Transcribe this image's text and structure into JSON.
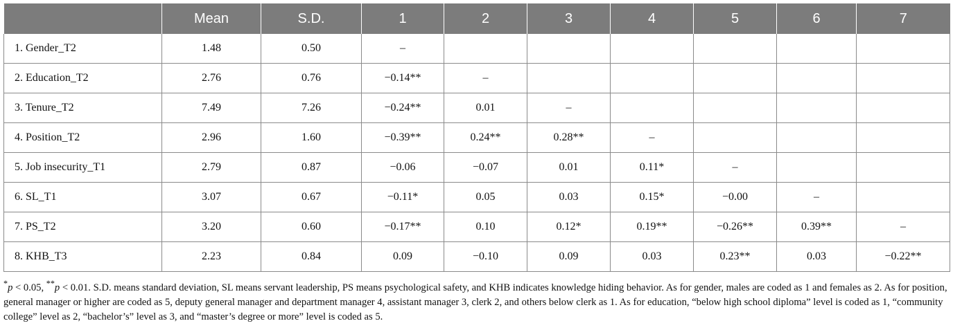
{
  "table": {
    "headers": [
      "",
      "Mean",
      "S.D.",
      "1",
      "2",
      "3",
      "4",
      "5",
      "6",
      "7"
    ],
    "rows": [
      [
        "1. Gender_T2",
        "1.48",
        "0.50",
        "–",
        "",
        "",
        "",
        "",
        "",
        ""
      ],
      [
        "2. Education_T2",
        "2.76",
        "0.76",
        "−0.14**",
        "–",
        "",
        "",
        "",
        "",
        ""
      ],
      [
        "3. Tenure_T2",
        "7.49",
        "7.26",
        "−0.24**",
        "0.01",
        "–",
        "",
        "",
        "",
        ""
      ],
      [
        "4. Position_T2",
        "2.96",
        "1.60",
        "−0.39**",
        "0.24**",
        "0.28**",
        "–",
        "",
        "",
        ""
      ],
      [
        "5. Job insecurity_T1",
        "2.79",
        "0.87",
        "−0.06",
        "−0.07",
        "0.01",
        "0.11*",
        "–",
        "",
        ""
      ],
      [
        "6. SL_T1",
        "3.07",
        "0.67",
        "−0.11*",
        "0.05",
        "0.03",
        "0.15*",
        "−0.00",
        "–",
        ""
      ],
      [
        "7. PS_T2",
        "3.20",
        "0.60",
        "−0.17**",
        "0.10",
        "0.12*",
        "0.19**",
        "−0.26**",
        "0.39**",
        "–"
      ],
      [
        "8. KHB_T3",
        "2.23",
        "0.84",
        "0.09",
        "−0.10",
        "0.09",
        "0.03",
        "0.23**",
        "0.03",
        "−0.22**"
      ]
    ]
  },
  "note": {
    "mark1": "*",
    "p1": "p",
    "thr1": " < 0.05, ",
    "mark2": "**",
    "p2": "p",
    "thr2": " < 0.01.",
    "body": " S.D. means standard deviation, SL means servant leadership, PS means psychological safety, and KHB indicates knowledge hiding behavior. As for gender, males are coded as 1 and females as 2. As for position, general manager or higher are coded as 5, deputy general manager and department manager 4, assistant manager 3, clerk 2, and others below clerk as 1. As for education, “below high school diploma” level is coded as 1, “community college” level as 2, “bachelor’s” level as 3, and “master’s degree or more” level is coded as 5."
  },
  "colors": {
    "header_bg": "#7c7c7c",
    "header_text": "#ffffff",
    "grid": "#8a8a8a"
  }
}
